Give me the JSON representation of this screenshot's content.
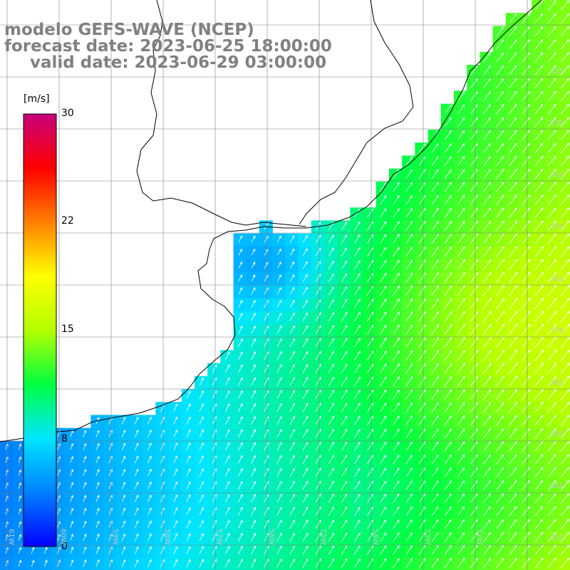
{
  "title": {
    "line1": "modelo GEFS-WAVE (NCEP)",
    "line2": "forecast date: 2023-06-25 18:00:00",
    "line3": "valid date: 2023-06-29 03:00:00"
  },
  "colorbar": {
    "unit": "[m/s]",
    "ticks": [
      "30",
      "22",
      "15",
      "8",
      "0"
    ],
    "colors": [
      "#0000ff",
      "#0080ff",
      "#00e5ff",
      "#00ff40",
      "#b4ff00",
      "#ffff00",
      "#ff8000",
      "#ff0000",
      "#c8007a"
    ]
  },
  "lat_labels": [
    "32S",
    "33S",
    "34S",
    "35S",
    "36S",
    "37S",
    "38S",
    "39S",
    "40S",
    "41S"
  ],
  "lon_labels": [
    "61W",
    "60W",
    "59W",
    "58W",
    "57W",
    "56W",
    "55W",
    "54W",
    "53W",
    "52W"
  ],
  "map_colors": {
    "land": "#ffffff",
    "grid": "#808080",
    "coast": "#000000",
    "arrow": "#ffffff"
  }
}
